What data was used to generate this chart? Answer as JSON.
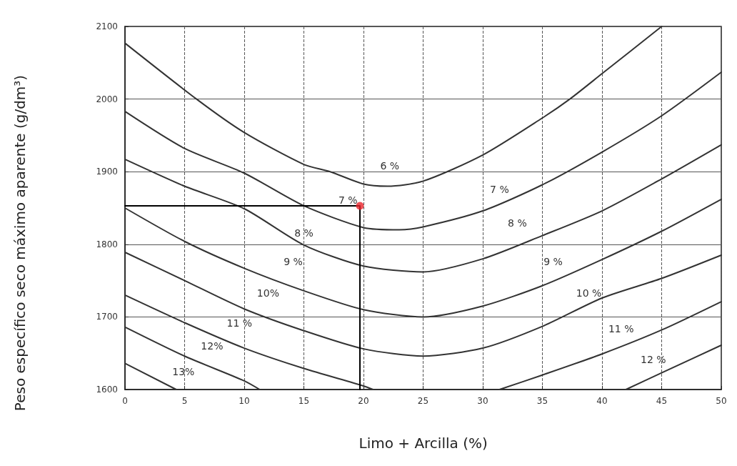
{
  "chart_data": {
    "type": "line",
    "xlabel": "Limo + Arcilla (%)",
    "ylabel": "Peso específico seco máximo aparente (g/dm³)",
    "xlim": [
      0,
      50
    ],
    "xticks": [
      0,
      5,
      10,
      15,
      20,
      25,
      30,
      35,
      40,
      45,
      50
    ],
    "ylim": [
      1600,
      2100
    ],
    "yticks": [
      1600,
      1700,
      1800,
      1900,
      2000,
      2100
    ],
    "grid": true,
    "marker": "none",
    "line_style": "solid",
    "series": [
      {
        "color": "#333333",
        "x": [
          0,
          6,
          10,
          15,
          17.2,
          20,
          22,
          25,
          30,
          35,
          37.3,
          40,
          45
        ],
        "values": [
          2077,
          2000,
          1954,
          1910,
          1900,
          1883,
          1880,
          1887,
          1923,
          1974,
          2000,
          2035,
          2100
        ]
      },
      {
        "color": "#333333",
        "x": [
          0,
          5,
          10,
          15,
          20,
          23,
          25,
          30,
          35,
          40,
          45,
          50
        ],
        "values": [
          1983,
          1932,
          1898,
          1853,
          1823,
          1820,
          1824,
          1846,
          1882,
          1927,
          1977,
          2037
        ]
      },
      {
        "color": "#333333",
        "x": [
          0,
          5,
          10,
          15,
          20,
          25,
          30,
          35,
          40,
          45,
          50
        ],
        "values": [
          1917,
          1880,
          1849,
          1799,
          1770,
          1762,
          1780,
          1812,
          1846,
          1890,
          1937
        ]
      },
      {
        "color": "#333333",
        "x": [
          0,
          5,
          10,
          15,
          20,
          25,
          30,
          35,
          40,
          45,
          50
        ],
        "values": [
          1850,
          1804,
          1767,
          1736,
          1710,
          1700,
          1715,
          1743,
          1779,
          1818,
          1862
        ]
      },
      {
        "color": "#333333",
        "x": [
          0,
          5,
          10,
          15,
          20,
          25,
          30,
          35,
          40,
          45,
          50
        ],
        "values": [
          1789,
          1750,
          1711,
          1681,
          1656,
          1646,
          1657,
          1687,
          1726,
          1753,
          1785
        ]
      },
      {
        "color": "#333333",
        "x": [
          0,
          5,
          10,
          15,
          20,
          20.8,
          25,
          31.4,
          35,
          40,
          45,
          50
        ],
        "values": [
          1730,
          1692,
          1657,
          1629,
          1605,
          1600,
          null,
          1600,
          1620,
          1649,
          1682,
          1721
        ]
      },
      {
        "color": "#333333",
        "x": [
          0,
          5,
          10,
          11.3,
          25,
          42,
          45,
          50
        ],
        "values": [
          1686,
          1646,
          1612,
          1600,
          null,
          1600,
          1623,
          1661
        ]
      },
      {
        "color": "#333333",
        "x": [
          0,
          4.3
        ],
        "values": [
          1636,
          1600
        ]
      },
      {
        "color": "#000000",
        "x": [
          0,
          19.7,
          19.7
        ],
        "values": [
          1853,
          1853,
          1600
        ]
      },
      {
        "type": "scatter",
        "marker": "circle",
        "color": "#e8232a",
        "x": [
          19.7
        ],
        "values": [
          1853
        ]
      }
    ],
    "annotations": [
      {
        "text": "6 %",
        "x": 22.2,
        "y": 1908
      },
      {
        "text": "7 %",
        "x": 18.7,
        "y": 1861
      },
      {
        "text": "7 %",
        "x": 31.4,
        "y": 1876
      },
      {
        "text": "8 %",
        "x": 15,
        "y": 1816
      },
      {
        "text": "8 %",
        "x": 32.9,
        "y": 1829
      },
      {
        "text": "9 %",
        "x": 14.1,
        "y": 1776
      },
      {
        "text": "9 %",
        "x": 35.9,
        "y": 1776
      },
      {
        "text": "10%",
        "x": 12,
        "y": 1733
      },
      {
        "text": "10 %",
        "x": 38.9,
        "y": 1733
      },
      {
        "text": "11 %",
        "x": 9.6,
        "y": 1692
      },
      {
        "text": "11 %",
        "x": 41.6,
        "y": 1684
      },
      {
        "text": "12%",
        "x": 7.3,
        "y": 1660
      },
      {
        "text": "12 %",
        "x": 44.3,
        "y": 1641
      },
      {
        "text": "13%",
        "x": 4.9,
        "y": 1625
      }
    ]
  }
}
